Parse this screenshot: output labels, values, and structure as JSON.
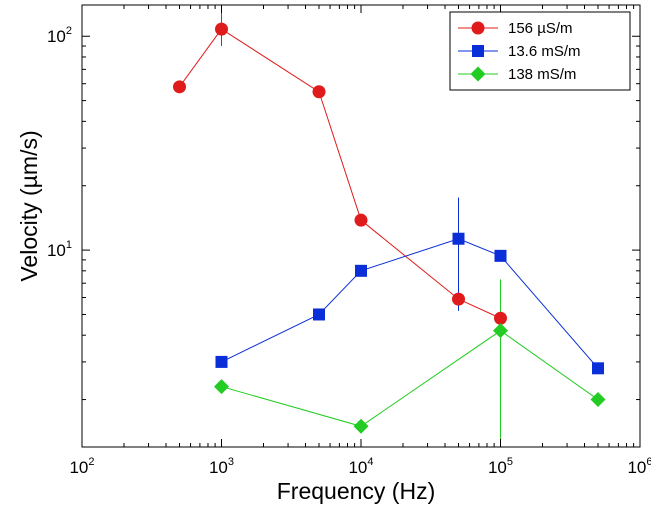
{
  "chart_data": {
    "type": "scatter",
    "xscale": "log",
    "yscale": "log",
    "xlabel": "Frequency (Hz)",
    "ylabel": "Velocity (µm/s)",
    "xlim": [
      100,
      1000000
    ],
    "ylim": [
      1.2,
      140
    ],
    "grid": false,
    "legend_position": "top-right",
    "x_ticks": [
      {
        "value": 100,
        "base": "10",
        "exp": "2"
      },
      {
        "value": 1000,
        "base": "10",
        "exp": "3"
      },
      {
        "value": 10000,
        "base": "10",
        "exp": "4"
      },
      {
        "value": 100000,
        "base": "10",
        "exp": "5"
      },
      {
        "value": 1000000,
        "base": "10",
        "exp": "6"
      }
    ],
    "y_ticks": [
      {
        "value": 10,
        "base": "10",
        "exp": "1"
      },
      {
        "value": 100,
        "base": "10",
        "exp": "2"
      }
    ],
    "series": [
      {
        "name": "156 µS/m",
        "color": "#e01b1b",
        "marker": "circle",
        "x": [
          500,
          1000,
          5000,
          10000,
          50000,
          100000
        ],
        "y": [
          58,
          108,
          55,
          13.8,
          5.9,
          4.8
        ],
        "error_bars": [
          {
            "x": 1000,
            "low": 90,
            "high": 130
          },
          {
            "x": 50000,
            "low": 5.3,
            "high": 6.4
          }
        ]
      },
      {
        "name": "13.6 mS/m",
        "color": "#0a2ed8",
        "marker": "square",
        "x": [
          1000,
          5000,
          10000,
          50000,
          100000,
          500000
        ],
        "y": [
          3.0,
          5.0,
          8.0,
          11.3,
          9.4,
          2.8
        ],
        "error_bars": [
          {
            "x": 50000,
            "low": 5.2,
            "high": 17.6
          }
        ]
      },
      {
        "name": "138 mS/m",
        "color": "#22cc22",
        "marker": "diamond",
        "x": [
          1000,
          10000,
          100000,
          500000
        ],
        "y": [
          2.3,
          1.5,
          4.2,
          2.0
        ],
        "error_bars": [
          {
            "x": 100000,
            "low": 1.1,
            "high": 7.3
          }
        ]
      }
    ]
  }
}
